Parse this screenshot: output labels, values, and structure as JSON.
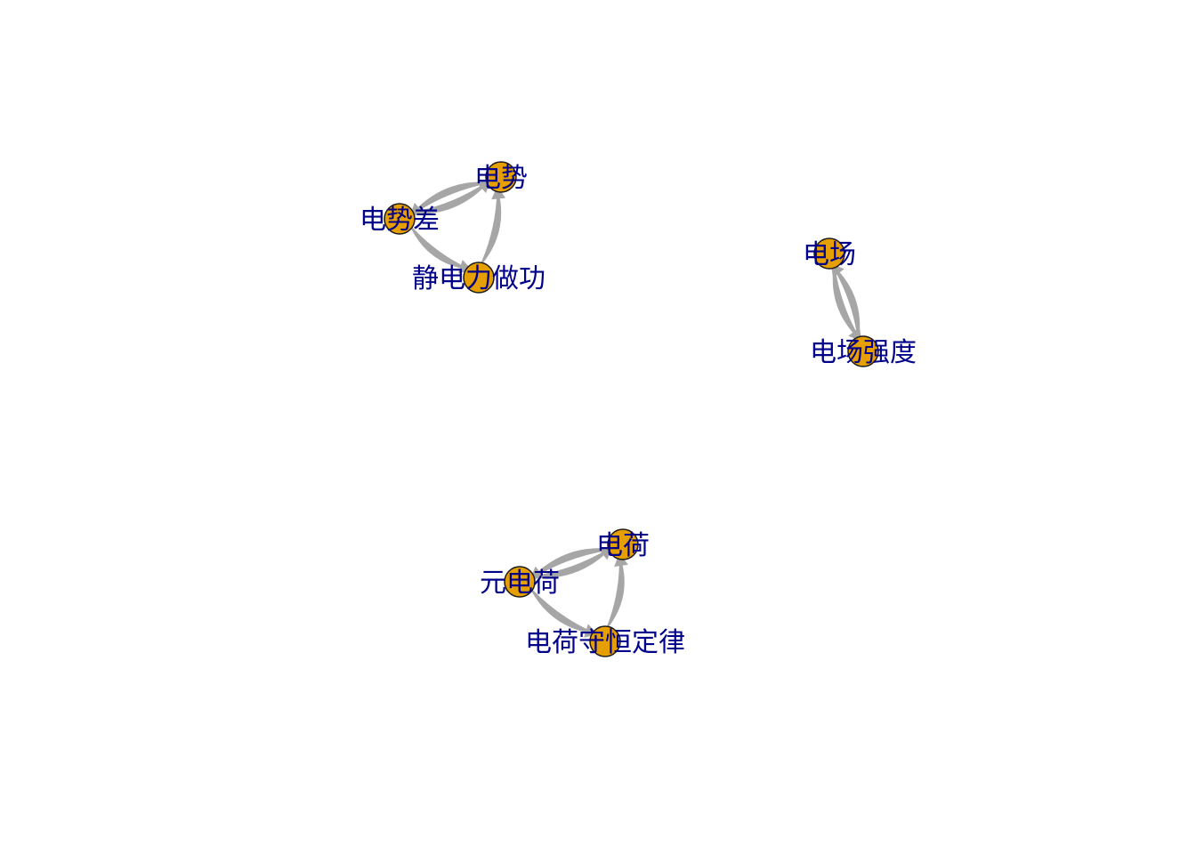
{
  "colors": {
    "background": "#ffffff",
    "node_fill": "#E69F00",
    "node_stroke": "#1a1a1a",
    "edge": "#a6a6a6",
    "label": "#00008B"
  },
  "nodes": [
    {
      "id": "dianshi",
      "label": "电势"
    },
    {
      "id": "dianshicha",
      "label": "电势差"
    },
    {
      "id": "jingdianli",
      "label": "静电力做功"
    },
    {
      "id": "dianchang",
      "label": "电场"
    },
    {
      "id": "dianchangqiangdu",
      "label": "电场强度"
    },
    {
      "id": "dianhe",
      "label": "电荷"
    },
    {
      "id": "yuandianhe",
      "label": "元电荷"
    },
    {
      "id": "shouheng",
      "label": "电荷守恒定律"
    }
  ],
  "edges": [
    {
      "from": "dianshi",
      "to": "dianshicha"
    },
    {
      "from": "dianshicha",
      "to": "dianshi"
    },
    {
      "from": "dianshicha",
      "to": "jingdianli"
    },
    {
      "from": "jingdianli",
      "to": "dianshi"
    },
    {
      "from": "dianchang",
      "to": "dianchangqiangdu"
    },
    {
      "from": "dianchangqiangdu",
      "to": "dianchang"
    },
    {
      "from": "dianhe",
      "to": "yuandianhe"
    },
    {
      "from": "yuandianhe",
      "to": "dianhe"
    },
    {
      "from": "yuandianhe",
      "to": "shouheng"
    },
    {
      "from": "shouheng",
      "to": "dianhe"
    }
  ]
}
